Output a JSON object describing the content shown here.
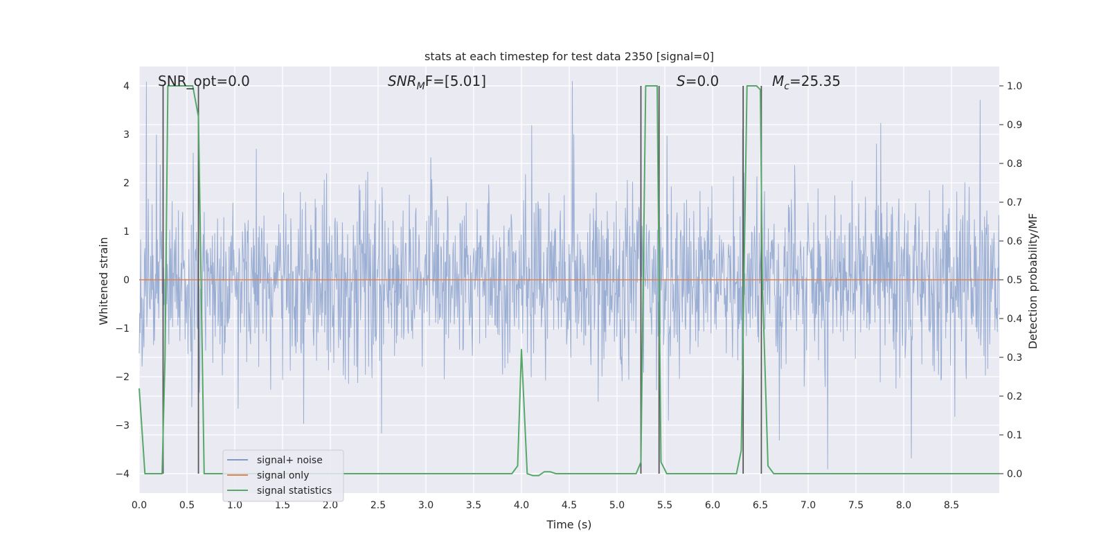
{
  "chart_data": {
    "type": "line",
    "title": "stats at each timestep for test data 2350 [signal=0]",
    "xlabel": "Time (s)",
    "ylabel": "Whitened strain",
    "y2label": "Detection probability/MF",
    "xlim": [
      0.0,
      9.0
    ],
    "ylim": [
      -4.4,
      4.4
    ],
    "y2lim": [
      -0.05,
      1.05
    ],
    "x_ticks": [
      0.0,
      0.5,
      1.0,
      1.5,
      2.0,
      2.5,
      3.0,
      3.5,
      4.0,
      4.5,
      5.0,
      5.5,
      6.0,
      6.5,
      7.0,
      7.5,
      8.0,
      8.5
    ],
    "x_tick_labels": [
      "0.0",
      "0.5",
      "1.0",
      "1.5",
      "2.0",
      "2.5",
      "3.0",
      "3.5",
      "4.0",
      "4.5",
      "5.0",
      "5.5",
      "6.0",
      "6.5",
      "7.0",
      "7.5",
      "8.0",
      "8.5"
    ],
    "y_ticks": [
      -4,
      -3,
      -2,
      -1,
      0,
      1,
      2,
      3,
      4
    ],
    "y_tick_labels": [
      "−4",
      "−3",
      "−2",
      "−1",
      "0",
      "1",
      "2",
      "3",
      "4"
    ],
    "y2_ticks": [
      0.0,
      0.1,
      0.2,
      0.3,
      0.4,
      0.5,
      0.6,
      0.7,
      0.8,
      0.9,
      1.0
    ],
    "y2_tick_labels": [
      "0.0",
      "0.1",
      "0.2",
      "0.3",
      "0.4",
      "0.5",
      "0.6",
      "0.7",
      "0.8",
      "0.9",
      "1.0"
    ],
    "series": [
      {
        "name": "signal+ noise",
        "color": "#7f9ac8",
        "axis": "left",
        "description": "dense whitened strain noise, roughly within ±1.5 with spikes to about ±4",
        "sample_count": 1800,
        "seed": 2350
      },
      {
        "name": "signal only",
        "color": "#dd8452",
        "axis": "left",
        "x": [
          0.0,
          9.0
        ],
        "values": [
          0.0,
          0.0
        ]
      },
      {
        "name": "signal statistics",
        "color": "#55a868",
        "axis": "right",
        "x": [
          0.0,
          0.06,
          0.24,
          0.27,
          0.3,
          0.36,
          0.48,
          0.56,
          0.62,
          0.68,
          3.9,
          3.96,
          4.0,
          4.06,
          4.12,
          4.18,
          4.24,
          4.3,
          4.36,
          4.5,
          5.2,
          5.25,
          5.3,
          5.36,
          5.42,
          5.44,
          5.46,
          5.52,
          6.25,
          6.3,
          6.36,
          6.46,
          6.5,
          6.52,
          6.58,
          6.64,
          9.0
        ],
        "values": [
          0.22,
          0.0,
          0.0,
          0.3,
          1.0,
          1.0,
          1.0,
          1.0,
          0.92,
          0.0,
          0.0,
          0.02,
          0.32,
          0.0,
          -0.005,
          -0.005,
          0.005,
          0.005,
          0.0,
          0.0,
          0.0,
          0.03,
          1.0,
          1.0,
          1.0,
          0.5,
          0.03,
          0.0,
          0.0,
          0.06,
          1.0,
          1.0,
          0.99,
          0.5,
          0.02,
          0.0,
          0.0
        ]
      }
    ],
    "vertical_lines": [
      0.25,
      0.62,
      5.25,
      5.44,
      6.32,
      6.51
    ],
    "vertical_line_color": "#555555",
    "grid": true,
    "legend": {
      "position": "lower-left",
      "entries": [
        "signal+ noise",
        "signal only",
        "signal statistics"
      ]
    },
    "annotations": {
      "snr_opt": "SNR_opt=0.0",
      "snr_mf_name": "SNR",
      "snr_mf_sub": "M",
      "snr_mf_after": "F=[5.01]",
      "s_name": "S",
      "s_value": "=0.0",
      "mc_name": "M",
      "mc_sub": "c",
      "mc_value": "=25.35"
    },
    "colors": {
      "plot_background": "#eaeaf2",
      "grid": "#ffffff",
      "text": "#262626"
    }
  }
}
